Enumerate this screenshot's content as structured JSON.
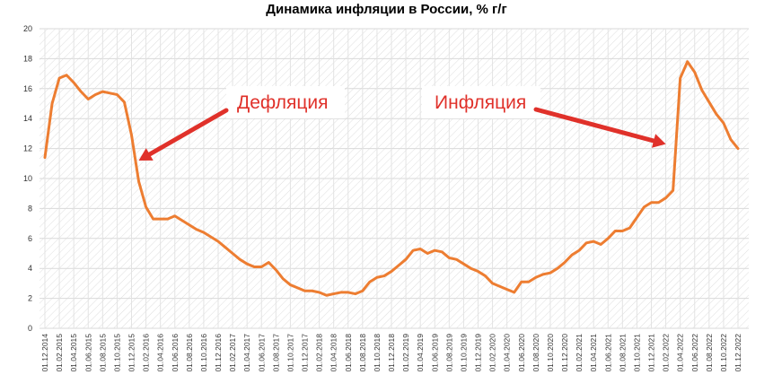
{
  "chart_data": {
    "type": "line",
    "title": "Динамика инфляции в России, % г/г",
    "xlabel": "",
    "ylabel": "",
    "ylim": [
      0,
      20
    ],
    "yticks": [
      "0",
      "2",
      "4",
      "6",
      "8",
      "10",
      "12",
      "14",
      "16",
      "18",
      "20"
    ],
    "grid": true,
    "line_color": "#ed7d31",
    "arrow_color": "#e0312a",
    "x_labels": [
      "01.12.2014",
      "01.02.2015",
      "01.04.2015",
      "01.06.2015",
      "01.08.2015",
      "01.10.2015",
      "01.12.2015",
      "01.02.2016",
      "01.04.2016",
      "01.06.2016",
      "01.08.2016",
      "01.10.2016",
      "01.12.2016",
      "01.02.2017",
      "01.04.2017",
      "01.06.2017",
      "01.08.2017",
      "01.10.2017",
      "01.12.2017",
      "01.02.2018",
      "01.04.2018",
      "01.06.2018",
      "01.08.2018",
      "01.10.2018",
      "01.12.2018",
      "01.02.2019",
      "01.04.2019",
      "01.06.2019",
      "01.08.2019",
      "01.10.2019",
      "01.12.2019",
      "01.02.2020",
      "01.04.2020",
      "01.06.2020",
      "01.08.2020",
      "01.10.2020",
      "01.12.2020",
      "01.02.2021",
      "01.04.2021",
      "01.06.2021",
      "01.08.2021",
      "01.10.2021",
      "01.12.2021",
      "01.02.2022",
      "01.04.2022",
      "01.06.2022",
      "01.08.2022",
      "01.10.2022",
      "01.12.2022"
    ],
    "series": [
      {
        "values": [
          11.4,
          15.0,
          16.7,
          16.9,
          16.4,
          15.8,
          15.3,
          15.6,
          15.8,
          15.7,
          15.6,
          15.1,
          12.9,
          9.8,
          8.1,
          7.3,
          7.3,
          7.3,
          7.5,
          7.2,
          6.9,
          6.6,
          6.4,
          6.1,
          5.8,
          5.4,
          5.0,
          4.6,
          4.3,
          4.1,
          4.1,
          4.4,
          3.9,
          3.3,
          2.9,
          2.7,
          2.5,
          2.5,
          2.4,
          2.2,
          2.3,
          2.4,
          2.4,
          2.3,
          2.5,
          3.1,
          3.4,
          3.5,
          3.8,
          4.2,
          4.6,
          5.2,
          5.3,
          5.0,
          5.2,
          5.1,
          4.7,
          4.6,
          4.3,
          4.0,
          3.8,
          3.5,
          3.0,
          2.8,
          2.6,
          2.4,
          3.1,
          3.1,
          3.4,
          3.6,
          3.7,
          4.0,
          4.4,
          4.9,
          5.2,
          5.7,
          5.8,
          5.6,
          6.0,
          6.5,
          6.5,
          6.7,
          7.4,
          8.1,
          8.4,
          8.4,
          8.7,
          9.2,
          16.7,
          17.8,
          17.1,
          15.9,
          15.1,
          14.3,
          13.7,
          12.6,
          12.0
        ]
      }
    ],
    "annotations": [
      {
        "text": "Дефляция",
        "arrow_to_index": 13,
        "arrow_to_value": 11.2
      },
      {
        "text": "Инфляция",
        "arrow_to_index": 86,
        "arrow_to_value": 12.3
      }
    ]
  }
}
